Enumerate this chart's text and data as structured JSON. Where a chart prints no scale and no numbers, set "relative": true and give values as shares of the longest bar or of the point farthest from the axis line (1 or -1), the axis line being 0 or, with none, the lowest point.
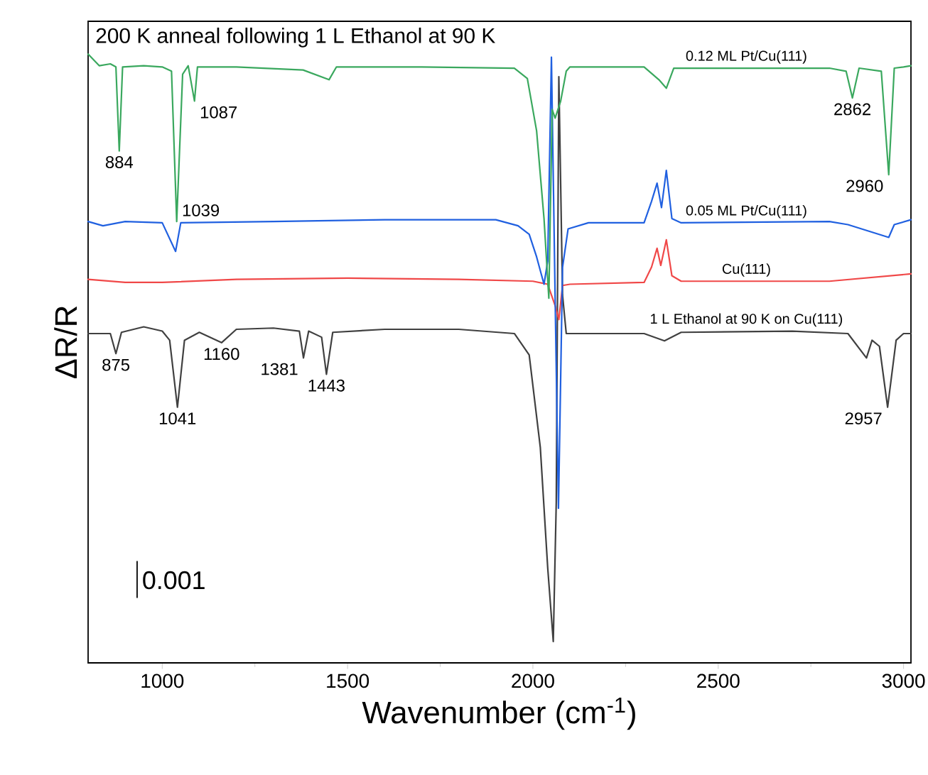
{
  "chart_data": {
    "type": "line",
    "title": "200 K anneal following 1 L Ethanol at 90 K",
    "xlabel": "Wavenumber (cm$^{-1}$)",
    "ylabel": "ΔR/R",
    "relative": true,
    "xlim": [
      800,
      3020
    ],
    "xticks": [
      1000,
      1500,
      2000,
      2500,
      3000
    ],
    "series": [
      {
        "name": "0.12 ML Pt/Cu(111)",
        "color": "#3aa85e",
        "x": [
          800,
          830,
          860,
          875,
          884,
          893,
          950,
          1000,
          1025,
          1039,
          1055,
          1070,
          1087,
          1095,
          1200,
          1380,
          1450,
          1470,
          1700,
          1950,
          1985,
          2010,
          2030,
          2043,
          2052,
          2060,
          2075,
          2090,
          2100,
          2300,
          2340,
          2360,
          2380,
          2800,
          2845,
          2862,
          2880,
          2940,
          2960,
          2975,
          3000,
          3020
        ],
        "values": [
          1,
          0.981,
          0.984,
          0.979,
          0.841,
          0.979,
          0.981,
          0.979,
          0.972,
          0.725,
          0.967,
          0.981,
          0.923,
          0.979,
          0.979,
          0.974,
          0.958,
          0.979,
          0.979,
          0.977,
          0.96,
          0.874,
          0.73,
          0.599,
          0.909,
          0.895,
          0.923,
          0.972,
          0.979,
          0.979,
          0.958,
          0.944,
          0.977,
          0.977,
          0.972,
          0.928,
          0.977,
          0.972,
          0.802,
          0.977,
          0.979,
          0.981
        ]
      },
      {
        "name": "0.05 ML Pt/Cu(111)",
        "color": "#2060e0",
        "x": [
          800,
          840,
          900,
          1000,
          1036,
          1050,
          1300,
          1600,
          1900,
          1960,
          1990,
          2010,
          2030,
          2040,
          2050,
          2060,
          2069,
          2080,
          2095,
          2150,
          2300,
          2320,
          2335,
          2347,
          2360,
          2375,
          2400,
          2800,
          2850,
          2960,
          2975,
          3020
        ],
        "values": [
          0.725,
          0.718,
          0.725,
          0.723,
          0.676,
          0.723,
          0.725,
          0.728,
          0.728,
          0.718,
          0.704,
          0.667,
          0.622,
          0.66,
          0.995,
          0.6,
          0.254,
          0.65,
          0.713,
          0.723,
          0.723,
          0.758,
          0.788,
          0.748,
          0.809,
          0.73,
          0.723,
          0.725,
          0.72,
          0.699,
          0.72,
          0.728
        ]
      },
      {
        "name": "Cu(111)",
        "color": "#f04848",
        "x": [
          800,
          900,
          1000,
          1200,
          1500,
          1800,
          2000,
          2040,
          2060,
          2070,
          2080,
          2100,
          2300,
          2320,
          2335,
          2345,
          2360,
          2375,
          2400,
          2800,
          3020
        ],
        "values": [
          0.63,
          0.625,
          0.625,
          0.63,
          0.632,
          0.63,
          0.627,
          0.622,
          0.587,
          0.564,
          0.62,
          0.622,
          0.625,
          0.65,
          0.681,
          0.653,
          0.695,
          0.636,
          0.627,
          0.627,
          0.639
        ]
      },
      {
        "name": "1 L Ethanol at 90 K on Cu(111)",
        "color": "#404040",
        "x": [
          800,
          860,
          875,
          890,
          950,
          1000,
          1020,
          1041,
          1060,
          1100,
          1160,
          1200,
          1300,
          1370,
          1381,
          1395,
          1430,
          1443,
          1460,
          1600,
          1800,
          1950,
          1990,
          2020,
          2040,
          2055,
          2063,
          2070,
          2080,
          2090,
          2200,
          2300,
          2355,
          2400,
          2700,
          2850,
          2900,
          2915,
          2935,
          2957,
          2980,
          3000,
          3020
        ],
        "values": [
          0.541,
          0.541,
          0.508,
          0.543,
          0.552,
          0.545,
          0.53,
          0.42,
          0.53,
          0.543,
          0.526,
          0.548,
          0.55,
          0.545,
          0.501,
          0.545,
          0.535,
          0.474,
          0.543,
          0.548,
          0.548,
          0.541,
          0.506,
          0.354,
          0.156,
          0.035,
          0.263,
          0.963,
          0.604,
          0.541,
          0.541,
          0.541,
          0.529,
          0.543,
          0.545,
          0.541,
          0.501,
          0.53,
          0.52,
          0.42,
          0.53,
          0.541,
          0.541
        ]
      }
    ],
    "annotations": [
      {
        "text": "884",
        "x": 884,
        "y": 0.841
      },
      {
        "text": "1087",
        "x": 1087,
        "y": 0.923
      },
      {
        "text": "1039",
        "x": 1039,
        "y": 0.725
      },
      {
        "text": "2862",
        "x": 2862,
        "y": 0.928
      },
      {
        "text": "2960",
        "x": 2960,
        "y": 0.802
      },
      {
        "text": "875",
        "x": 875,
        "y": 0.508
      },
      {
        "text": "1041",
        "x": 1041,
        "y": 0.42
      },
      {
        "text": "1160",
        "x": 1160,
        "y": 0.526
      },
      {
        "text": "1381",
        "x": 1381,
        "y": 0.501
      },
      {
        "text": "1443",
        "x": 1443,
        "y": 0.474
      },
      {
        "text": "2957",
        "x": 2957,
        "y": 0.42
      },
      "0.001"
    ]
  }
}
